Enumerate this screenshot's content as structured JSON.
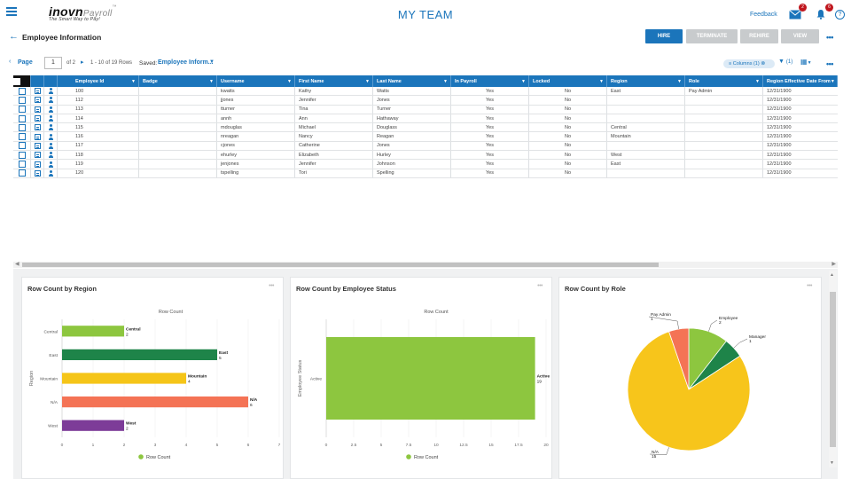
{
  "app": {
    "logo_main": "inovn",
    "logo_sub": "Payroll",
    "logo_tm": "™",
    "tagline": "The Smart Way to Pay!",
    "page_heading": "MY TEAM",
    "feedback": "Feedback",
    "mail_count": "2",
    "notif_count": "6",
    "help": "?"
  },
  "header": {
    "title": "Employee Information",
    "buttons": {
      "hire": "HIRE",
      "terminate": "TERMINATE",
      "rehire": "REHIRE",
      "view": "VIEW"
    },
    "more": "•••"
  },
  "pager": {
    "label": "Page",
    "current": "1",
    "of_total": "of 2",
    "rows_info": "1 - 10 of 19 Rows",
    "saved_label": "Saved:",
    "saved_value": "Employee Inform..."
  },
  "toolbar": {
    "columns": "Columns (1)",
    "filter": "(1)"
  },
  "grid": {
    "headers": {
      "employee_id": "Employee Id",
      "badge": "Badge",
      "username": "Username",
      "first_name": "First Name",
      "last_name": "Last Name",
      "in_payroll": "In Payroll",
      "locked": "Locked",
      "region": "Region",
      "role": "Role",
      "region_eff": "Region Effective Date From"
    },
    "rows": [
      {
        "id": "100",
        "badge": "",
        "user": "kwatts",
        "first": "Kathy",
        "last": "Watts",
        "pay": "Yes",
        "lock": "No",
        "region": "East",
        "role": "Pay Admin",
        "eff": "12/31/1900"
      },
      {
        "id": "112",
        "badge": "",
        "user": "jjones",
        "first": "Jennifer",
        "last": "Jones",
        "pay": "Yes",
        "lock": "No",
        "region": "",
        "role": "",
        "eff": "12/31/1900"
      },
      {
        "id": "113",
        "badge": "",
        "user": "tturner",
        "first": "Tina",
        "last": "Turner",
        "pay": "Yes",
        "lock": "No",
        "region": "",
        "role": "",
        "eff": "12/31/1900"
      },
      {
        "id": "114",
        "badge": "",
        "user": "annh",
        "first": "Ann",
        "last": "Hathaway",
        "pay": "Yes",
        "lock": "No",
        "region": "",
        "role": "",
        "eff": "12/31/1900"
      },
      {
        "id": "115",
        "badge": "",
        "user": "mdouglas",
        "first": "Michael",
        "last": "Douglass",
        "pay": "Yes",
        "lock": "No",
        "region": "Central",
        "role": "",
        "eff": "12/31/1900"
      },
      {
        "id": "116",
        "badge": "",
        "user": "nreagan",
        "first": "Nancy",
        "last": "Reagan",
        "pay": "Yes",
        "lock": "No",
        "region": "Mountain",
        "role": "",
        "eff": "12/31/1900"
      },
      {
        "id": "117",
        "badge": "",
        "user": "cjones",
        "first": "Catherine",
        "last": "Jones",
        "pay": "Yes",
        "lock": "No",
        "region": "",
        "role": "",
        "eff": "12/31/1900"
      },
      {
        "id": "118",
        "badge": "",
        "user": "ehurley",
        "first": "Elizabeth",
        "last": "Hurley",
        "pay": "Yes",
        "lock": "No",
        "region": "West",
        "role": "",
        "eff": "12/31/1900"
      },
      {
        "id": "119",
        "badge": "",
        "user": "jenjones",
        "first": "Jennifer",
        "last": "Johnson",
        "pay": "Yes",
        "lock": "No",
        "region": "East",
        "role": "",
        "eff": "12/31/1900"
      },
      {
        "id": "120",
        "badge": "",
        "user": "tspelling",
        "first": "Tori",
        "last": "Spelling",
        "pay": "Yes",
        "lock": "No",
        "region": "",
        "role": "",
        "eff": "12/31/1900"
      }
    ]
  },
  "colors": {
    "accent": "#1b75bb",
    "header_bg": "#1b75bb",
    "disabled_btn": "#c8cbcd"
  },
  "panels": {
    "region": {
      "title": "Row Count by Region",
      "more": "•••"
    },
    "status": {
      "title": "Row Count by Employee Status",
      "more": "•••"
    },
    "role": {
      "title": "Row Count by Role",
      "more": "•••"
    }
  },
  "chart_data": [
    {
      "type": "bar",
      "orientation": "horizontal",
      "title": "Row Count",
      "ylabel": "Region",
      "categories": [
        "Central",
        "East",
        "Mountain",
        "N/A",
        "West"
      ],
      "series": [
        {
          "name": "Row Count",
          "values": [
            2,
            5,
            4,
            6,
            2
          ]
        }
      ],
      "colors": [
        "#8dc63f",
        "#1e8449",
        "#f5c518",
        "#f47355",
        "#7d3c98"
      ],
      "xlim": [
        0,
        7
      ],
      "xticks": [
        "0",
        "1",
        "2",
        "3",
        "4",
        "5",
        "6",
        "7"
      ],
      "legend": "bottom"
    },
    {
      "type": "bar",
      "orientation": "horizontal",
      "title": "Row Count",
      "ylabel": "Employee Status",
      "categories": [
        "Active"
      ],
      "series": [
        {
          "name": "Row Count",
          "values": [
            19
          ]
        }
      ],
      "colors": [
        "#8dc63f"
      ],
      "xlim": [
        0,
        20
      ],
      "xticks": [
        "0",
        "2.5",
        "5",
        "7.5",
        "10",
        "12.5",
        "15",
        "17.5",
        "20"
      ],
      "legend": "bottom"
    },
    {
      "type": "pie",
      "categories": [
        "N/A",
        "Employee",
        "Manager",
        "Pay Admin"
      ],
      "values": [
        15,
        2,
        1,
        1
      ],
      "colors": [
        "#f7c51b",
        "#8dc63f",
        "#1e8449",
        "#f47355"
      ]
    }
  ]
}
